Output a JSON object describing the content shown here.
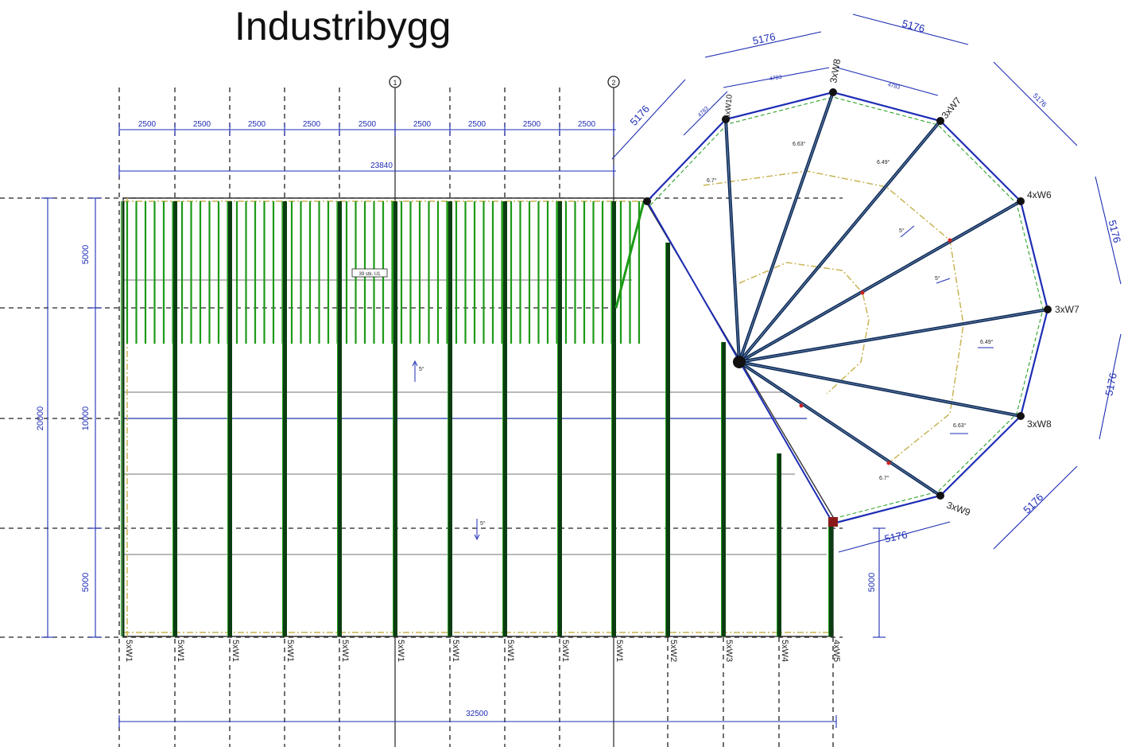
{
  "title": "Industribygg",
  "colors": {
    "dimension": "#1e2db4",
    "rafter": "#1c9a16",
    "beam": "#0b3d12",
    "radial": "#0d2a55",
    "hidden_dashed": "#222222",
    "ring": "#c8b454"
  },
  "grid_markers": [
    "1",
    "2"
  ],
  "top_dims": {
    "segments": [
      "2500",
      "2500",
      "2500",
      "2500",
      "2500",
      "2500",
      "2500",
      "2500",
      "2500"
    ],
    "overall": "23840"
  },
  "left_dims": {
    "top": "5000",
    "middle": "10000",
    "bottom": "5000",
    "overall": "20000"
  },
  "bottom_dim": "32500",
  "right_dim": "5000",
  "column_labels": [
    "5xW1",
    "5xW1",
    "5xW1",
    "5xW1",
    "5xW1",
    "5xW1",
    "5xW1",
    "5xW1",
    "5xW1",
    "5xW1",
    "5xW2",
    "5xW3",
    "5xW4",
    "4xW5"
  ],
  "round_labels": {
    "w6": "4xW6",
    "w7": "3xW7",
    "w8": "3xW8",
    "w9": "3xW9",
    "top_w8": "3xW8",
    "top_w7": "3xW7",
    "top_w10": "5xW10"
  },
  "polygon_dims": [
    "5176",
    "5176",
    "5176",
    "5176",
    "5176",
    "5176",
    "5176",
    "5176",
    "5176"
  ],
  "inner_dims": [
    "4783",
    "4783",
    "4783"
  ],
  "slope_labels": [
    "6.63°",
    "6.49°",
    "5°",
    "5°",
    "6.49°",
    "6.63°",
    "6.7°",
    "6.7°",
    "5°",
    "5°"
  ],
  "tag_label": "39 stk. U1"
}
